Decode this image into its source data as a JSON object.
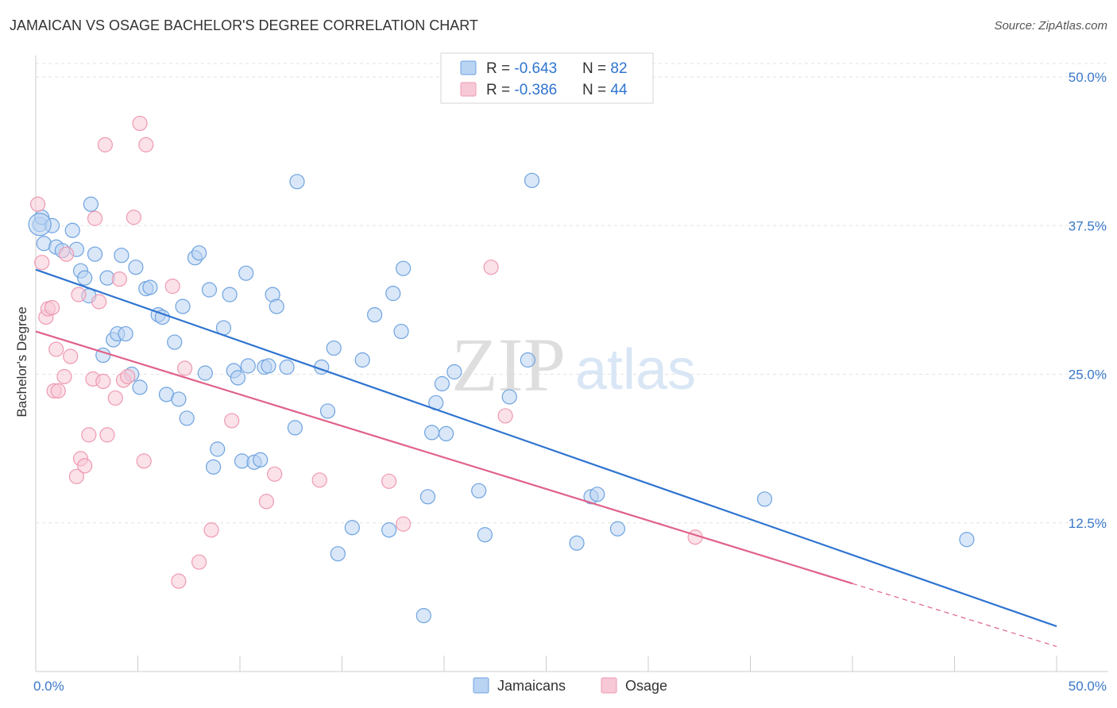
{
  "title": "JAMAICAN VS OSAGE BACHELOR'S DEGREE CORRELATION CHART",
  "source": "Source: ZipAtlas.com",
  "watermark": {
    "zip": "ZIP",
    "atlas": "atlas"
  },
  "chart_data": {
    "type": "scatter",
    "title": "JAMAICAN VS OSAGE BACHELOR'S DEGREE CORRELATION CHART",
    "xlabel": "",
    "ylabel": "Bachelor's Degree",
    "xlim": [
      0,
      50
    ],
    "ylim": [
      0,
      52
    ],
    "x_tick_labels": [
      "0.0%",
      "50.0%"
    ],
    "y_ticks": [
      12.5,
      25.0,
      37.5,
      50.0
    ],
    "y_tick_labels": [
      "12.5%",
      "25.0%",
      "37.5%",
      "50.0%"
    ],
    "grid": true,
    "legend_position": "bottom-center",
    "series": [
      {
        "name": "Jamaicans",
        "color": "#6fa3e0",
        "fill": "#b9d3f3",
        "line_color": "#2f74d0",
        "R": "-0.643",
        "N": "82",
        "trend": {
          "x0": 0,
          "y0": 33.8,
          "x1": 50,
          "y1": 3.8
        },
        "points": [
          [
            0.2,
            37.6
          ],
          [
            0.3,
            38.2
          ],
          [
            0.4,
            36.0
          ],
          [
            0.8,
            37.5
          ],
          [
            1.0,
            35.7
          ],
          [
            1.3,
            35.4
          ],
          [
            1.8,
            37.1
          ],
          [
            2.0,
            35.5
          ],
          [
            2.2,
            33.7
          ],
          [
            2.4,
            33.1
          ],
          [
            2.6,
            31.6
          ],
          [
            2.7,
            39.3
          ],
          [
            2.9,
            35.1
          ],
          [
            3.3,
            26.6
          ],
          [
            3.5,
            33.1
          ],
          [
            3.8,
            27.9
          ],
          [
            4.0,
            28.4
          ],
          [
            4.2,
            35.0
          ],
          [
            4.4,
            28.4
          ],
          [
            4.7,
            25.0
          ],
          [
            4.9,
            34.0
          ],
          [
            5.1,
            23.9
          ],
          [
            5.4,
            32.2
          ],
          [
            5.6,
            32.3
          ],
          [
            6.0,
            30.0
          ],
          [
            6.2,
            29.8
          ],
          [
            6.4,
            23.3
          ],
          [
            6.8,
            27.7
          ],
          [
            7.0,
            22.9
          ],
          [
            7.2,
            30.7
          ],
          [
            7.4,
            21.3
          ],
          [
            7.8,
            34.8
          ],
          [
            8.0,
            35.2
          ],
          [
            8.3,
            25.1
          ],
          [
            8.5,
            32.1
          ],
          [
            8.7,
            17.2
          ],
          [
            8.9,
            18.7
          ],
          [
            9.2,
            28.9
          ],
          [
            9.5,
            31.7
          ],
          [
            9.7,
            25.3
          ],
          [
            9.9,
            24.7
          ],
          [
            10.1,
            17.7
          ],
          [
            10.3,
            33.5
          ],
          [
            10.4,
            25.7
          ],
          [
            10.7,
            17.6
          ],
          [
            11.0,
            17.8
          ],
          [
            11.2,
            25.6
          ],
          [
            11.4,
            25.7
          ],
          [
            11.6,
            31.7
          ],
          [
            11.8,
            30.7
          ],
          [
            12.3,
            25.6
          ],
          [
            12.7,
            20.5
          ],
          [
            12.8,
            41.2
          ],
          [
            14.0,
            25.6
          ],
          [
            14.3,
            21.9
          ],
          [
            14.6,
            27.2
          ],
          [
            14.8,
            9.9
          ],
          [
            15.5,
            12.1
          ],
          [
            16.0,
            26.2
          ],
          [
            16.6,
            30.0
          ],
          [
            17.3,
            11.9
          ],
          [
            17.5,
            31.8
          ],
          [
            17.9,
            28.6
          ],
          [
            18.0,
            33.9
          ],
          [
            19.0,
            4.7
          ],
          [
            19.2,
            14.7
          ],
          [
            19.4,
            20.1
          ],
          [
            19.6,
            22.6
          ],
          [
            19.9,
            24.2
          ],
          [
            20.1,
            20.0
          ],
          [
            20.5,
            25.2
          ],
          [
            21.7,
            15.2
          ],
          [
            22.0,
            11.5
          ],
          [
            23.2,
            23.1
          ],
          [
            24.1,
            26.2
          ],
          [
            24.3,
            41.3
          ],
          [
            26.5,
            10.8
          ],
          [
            27.2,
            14.7
          ],
          [
            27.5,
            14.9
          ],
          [
            28.5,
            12.0
          ],
          [
            35.7,
            14.5
          ],
          [
            45.6,
            11.1
          ]
        ]
      },
      {
        "name": "Osage",
        "color": "#ee9ab2",
        "fill": "#f7c8d6",
        "line_color": "#e0628a",
        "R": "-0.386",
        "N": "44",
        "trend": {
          "x0": 0,
          "y0": 28.6,
          "x1": 40,
          "y1": 7.4
        },
        "trend_dashed": {
          "x0": 40,
          "y0": 7.4,
          "x1": 50,
          "y1": 2.1
        },
        "points": [
          [
            0.1,
            39.3
          ],
          [
            0.3,
            34.4
          ],
          [
            0.5,
            29.8
          ],
          [
            0.6,
            30.5
          ],
          [
            0.8,
            30.6
          ],
          [
            0.9,
            23.6
          ],
          [
            1.0,
            27.1
          ],
          [
            1.1,
            23.6
          ],
          [
            1.4,
            24.8
          ],
          [
            1.5,
            35.1
          ],
          [
            1.7,
            26.5
          ],
          [
            2.0,
            16.4
          ],
          [
            2.1,
            31.7
          ],
          [
            2.2,
            17.9
          ],
          [
            2.4,
            17.3
          ],
          [
            2.6,
            19.9
          ],
          [
            2.8,
            24.6
          ],
          [
            2.9,
            38.1
          ],
          [
            3.1,
            31.1
          ],
          [
            3.3,
            24.4
          ],
          [
            3.5,
            19.9
          ],
          [
            3.4,
            44.3
          ],
          [
            3.9,
            23.0
          ],
          [
            4.1,
            33.0
          ],
          [
            4.3,
            24.5
          ],
          [
            4.5,
            24.8
          ],
          [
            4.8,
            38.2
          ],
          [
            5.1,
            46.1
          ],
          [
            5.3,
            17.7
          ],
          [
            5.4,
            44.3
          ],
          [
            6.7,
            32.4
          ],
          [
            7.0,
            7.6
          ],
          [
            7.3,
            25.5
          ],
          [
            8.0,
            9.2
          ],
          [
            8.6,
            11.9
          ],
          [
            9.6,
            21.1
          ],
          [
            11.3,
            14.3
          ],
          [
            11.7,
            16.6
          ],
          [
            13.9,
            16.1
          ],
          [
            17.3,
            16.0
          ],
          [
            18.0,
            12.4
          ],
          [
            22.3,
            34.0
          ],
          [
            23.0,
            21.5
          ],
          [
            32.3,
            11.3
          ]
        ]
      }
    ]
  }
}
